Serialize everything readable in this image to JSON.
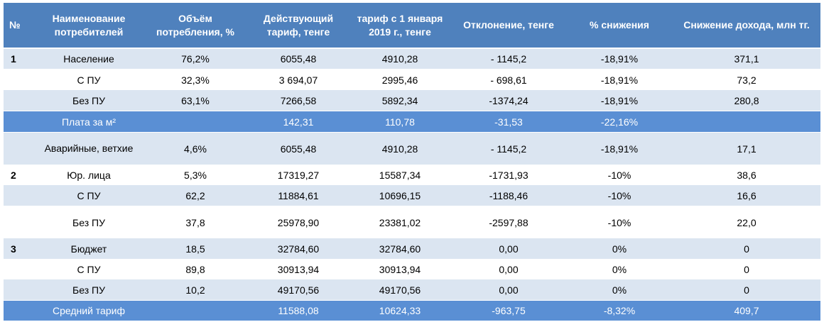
{
  "headers": [
    "№",
    "Наименование потребителей",
    "Объём потребления, %",
    "Действующий тариф, тенге",
    "тариф с 1 января 2019 г., тенге",
    "Отклонение, тенге",
    "% снижения",
    "Снижение дохода, млн тг."
  ],
  "rows": [
    {
      "num": "1",
      "name": "Население",
      "volume": "76,2%",
      "current": "6055,48",
      "new_tariff": "4910,28",
      "deviation": "- 1145,2",
      "reduction": "-18,91%",
      "income": "371,1"
    },
    {
      "num": "",
      "name": "С ПУ",
      "volume": "32,3%",
      "current": "3 694,07",
      "new_tariff": "2995,46",
      "deviation": "- 698,61",
      "reduction": "-18,91%",
      "income": "73,2"
    },
    {
      "num": "",
      "name": "Без ПУ",
      "volume": "63,1%",
      "current": "7266,58",
      "new_tariff": "5892,34",
      "deviation": "-1374,24",
      "reduction": "-18,91%",
      "income": "280,8"
    },
    {
      "num": "",
      "name": "Плата за м²",
      "volume": "",
      "current": "142,31",
      "new_tariff": "110,78",
      "deviation": "-31,53",
      "reduction": "-22,16%",
      "income": ""
    },
    {
      "num": "",
      "name": "Аварийные, ветхие",
      "volume": "4,6%",
      "current": "6055,48",
      "new_tariff": "4910,28",
      "deviation": "- 1145,2",
      "reduction": "-18,91%",
      "income": "17,1"
    },
    {
      "num": "2",
      "name": "Юр. лица",
      "volume": "5,3%",
      "current": "17319,27",
      "new_tariff": "15587,34",
      "deviation": "-1731,93",
      "reduction": "-10%",
      "income": "38,6"
    },
    {
      "num": "",
      "name": "С ПУ",
      "volume": "62,2",
      "current": "11884,61",
      "new_tariff": "10696,15",
      "deviation": "-1188,46",
      "reduction": "-10%",
      "income": "16,6"
    },
    {
      "num": "",
      "name": "Без ПУ",
      "volume": "37,8",
      "current": "25978,90",
      "new_tariff": "23381,02",
      "deviation": "-2597,88",
      "reduction": "-10%",
      "income": "22,0"
    },
    {
      "num": "3",
      "name": "Бюджет",
      "volume": "18,5",
      "current": "32784,60",
      "new_tariff": "32784,60",
      "deviation": "0,00",
      "reduction": "0%",
      "income": "0"
    },
    {
      "num": "",
      "name": "С ПУ",
      "volume": "89,8",
      "current": "30913,94",
      "new_tariff": "30913,94",
      "deviation": "0,00",
      "reduction": "0%",
      "income": "0"
    },
    {
      "num": "",
      "name": "Без ПУ",
      "volume": "10,2",
      "current": "49170,56",
      "new_tariff": "49170,56",
      "deviation": "0,00",
      "reduction": "0%",
      "income": "0"
    },
    {
      "num": "",
      "name": "Средний тариф",
      "volume": "",
      "current": "11588,08",
      "new_tariff": "10624,33",
      "deviation": "-963,75",
      "reduction": "-8,32%",
      "income": "409,7"
    }
  ],
  "colors": {
    "header_bg": "#4f81bd",
    "highlight_bg": "#5a8fd4",
    "band_bg": "#dbe5f1"
  }
}
